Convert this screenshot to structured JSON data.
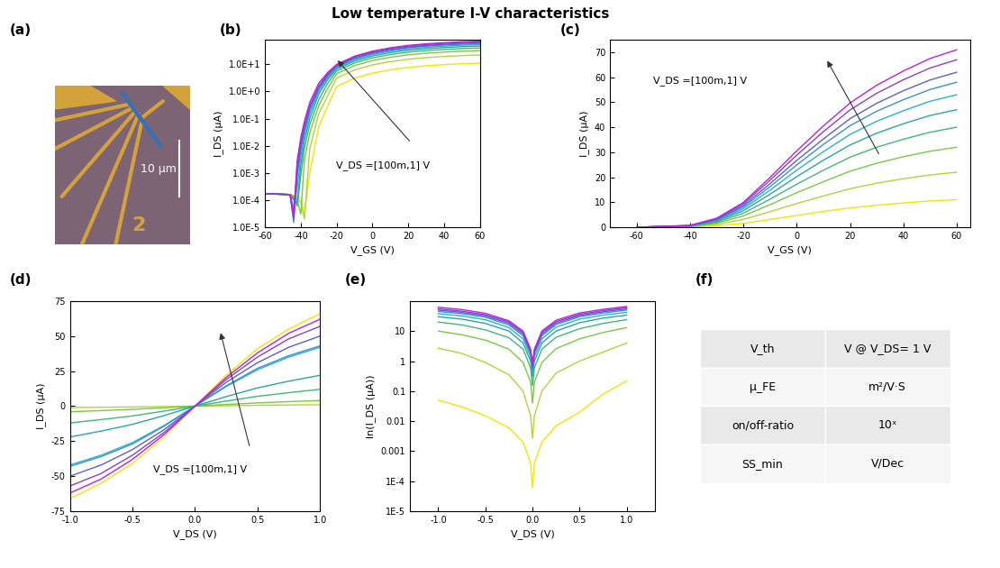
{
  "title": "Low temperature I-V characteristics",
  "image_panel": {
    "panel_label": "(a)",
    "scale_bar": "10 µm",
    "marker_text": "2"
  },
  "chart_data": [
    {
      "panel_label": "(b)",
      "type": "line",
      "log": "y",
      "x_label": "V_GS (V)",
      "y_label": "I_DS (µA)",
      "annotation": "V_DS =[100m,1] V",
      "x": [
        -60,
        -46,
        -44,
        -42,
        -40,
        -38,
        -35,
        -30,
        -25,
        -20,
        -10,
        0,
        10,
        20,
        30,
        40,
        50,
        60
      ],
      "xlim": [
        -60,
        60
      ],
      "xticks": [
        -60,
        -40,
        -20,
        0,
        20,
        40,
        60
      ],
      "ylim": [
        1e-05,
        80
      ],
      "yticks": [
        {
          "value": 1e-05,
          "label": "1.0E-5"
        },
        {
          "value": 0.0001,
          "label": "1.0E-4"
        },
        {
          "value": 0.001,
          "label": "1.0E-3"
        },
        {
          "value": 0.01,
          "label": "1.0E-2"
        },
        {
          "value": 0.1,
          "label": "1.0E-1"
        },
        {
          "value": 1,
          "label": "1.0E+0"
        },
        {
          "value": 10,
          "label": "1.0E+1"
        }
      ],
      "series": [
        {
          "color": "#f2e600",
          "values": [
            0.00017,
            0.00016,
            0.00015,
            0.00014,
            0.00012,
            3e-05,
            0.001,
            0.05,
            0.3,
            1.5,
            3.1,
            4.7,
            6.3,
            7.7,
            8.8,
            9.7,
            10.5,
            11
          ]
        },
        {
          "color": "#b5d334",
          "values": [
            0.00017,
            0.00016,
            0.00014,
            0.00012,
            8e-05,
            2e-05,
            0.008,
            0.15,
            0.7,
            3.1,
            6.2,
            9.5,
            12.5,
            15.4,
            17.6,
            19.4,
            20.9,
            22
          ]
        },
        {
          "color": "#7ac943",
          "values": [
            0.00017,
            0.00016,
            0.00013,
            0.0001,
            3e-05,
            0.003,
            0.03,
            0.3,
            1.3,
            4.5,
            9,
            13.8,
            18.2,
            22.4,
            25.6,
            28.2,
            30.4,
            32
          ]
        },
        {
          "color": "#3fb87a",
          "values": [
            0.00017,
            0.00016,
            0.00012,
            6e-05,
            0.0008,
            0.008,
            0.06,
            0.5,
            2,
            5.6,
            11.2,
            17.2,
            22.8,
            28,
            32,
            35.2,
            38,
            40
          ]
        },
        {
          "color": "#2aa6a0",
          "values": [
            0.00017,
            0.00016,
            0.0001,
            8e-05,
            0.002,
            0.015,
            0.1,
            0.8,
            2.7,
            6.6,
            13.2,
            20.2,
            26.8,
            32.9,
            37.6,
            41.4,
            44.7,
            47
          ]
        },
        {
          "color": "#27b6c6",
          "values": [
            0.00017,
            0.00016,
            5e-05,
            0.0003,
            0.004,
            0.025,
            0.15,
            1,
            3.2,
            7.4,
            14.8,
            22.8,
            30.2,
            37.1,
            42.4,
            46.6,
            50.4,
            53
          ]
        },
        {
          "color": "#3a8fd6",
          "values": [
            0.00017,
            0.00016,
            1.5e-05,
            0.0008,
            0.007,
            0.035,
            0.2,
            1.2,
            3.6,
            8.1,
            16.2,
            24.9,
            33.1,
            40.6,
            46.4,
            51,
            55.1,
            58
          ]
        },
        {
          "color": "#5a5fd0",
          "values": [
            0.00017,
            0.00016,
            2e-05,
            0.0012,
            0.01,
            0.045,
            0.25,
            1.4,
            4,
            8.7,
            17.4,
            26.7,
            35.3,
            43.4,
            49.6,
            54.6,
            58.9,
            62
          ]
        },
        {
          "color": "#8a3fcf",
          "values": [
            0.00017,
            0.00016,
            2.5e-05,
            0.002,
            0.015,
            0.06,
            0.3,
            1.6,
            4.5,
            9.4,
            18.8,
            28.8,
            38.2,
            46.9,
            53.6,
            59,
            63.7,
            67
          ]
        },
        {
          "color": "#c21fd6",
          "values": [
            0.00017,
            0.00016,
            3e-05,
            0.003,
            0.02,
            0.08,
            0.4,
            2,
            5,
            9.9,
            19.9,
            30.5,
            40.5,
            49.7,
            56.8,
            62.5,
            67.5,
            71
          ]
        }
      ]
    },
    {
      "panel_label": "(c)",
      "type": "line",
      "x_label": "V_GS (V)",
      "y_label": "I_DS (µA)",
      "annotation": "V_DS =[100m,1] V",
      "x": [
        -60,
        -40,
        -30,
        -20,
        -10,
        0,
        10,
        20,
        30,
        40,
        50,
        60
      ],
      "xlim": [
        -70,
        65
      ],
      "xticks": [
        -60,
        -40,
        -20,
        0,
        20,
        40,
        60
      ],
      "ylim": [
        0,
        75
      ],
      "yticks": [
        0,
        10,
        20,
        30,
        40,
        50,
        60,
        70
      ],
      "series": [
        {
          "color": "#f2e600",
          "values": [
            0,
            0.1,
            0.6,
            1.5,
            3.1,
            4.7,
            6.3,
            7.7,
            8.8,
            9.7,
            10.5,
            11
          ]
        },
        {
          "color": "#b5d334",
          "values": [
            0,
            0.2,
            1.1,
            3.1,
            6.2,
            9.5,
            12.5,
            15.4,
            17.6,
            19.4,
            20.9,
            22
          ]
        },
        {
          "color": "#7ac943",
          "values": [
            0,
            0.3,
            1.6,
            4.5,
            9,
            13.8,
            18.2,
            22.4,
            25.6,
            28.2,
            30.4,
            32
          ]
        },
        {
          "color": "#3fb87a",
          "values": [
            0,
            0.4,
            2,
            5.6,
            11.2,
            17.2,
            22.8,
            28,
            32,
            35.2,
            38,
            40
          ]
        },
        {
          "color": "#2aa6a0",
          "values": [
            0,
            0.5,
            2.4,
            6.6,
            13.2,
            20.2,
            26.8,
            32.9,
            37.6,
            41.4,
            44.7,
            47
          ]
        },
        {
          "color": "#27b6c6",
          "values": [
            0,
            0.5,
            2.7,
            7.4,
            14.8,
            22.8,
            30.2,
            37.1,
            42.4,
            46.6,
            50.4,
            53
          ]
        },
        {
          "color": "#3a8fd6",
          "values": [
            0,
            0.6,
            2.9,
            8.1,
            16.2,
            24.9,
            33.1,
            40.6,
            46.4,
            51,
            55.1,
            58
          ]
        },
        {
          "color": "#5a5fd0",
          "values": [
            0,
            0.6,
            3.1,
            8.7,
            17.4,
            26.7,
            35.3,
            43.4,
            49.6,
            54.6,
            58.9,
            62
          ]
        },
        {
          "color": "#8a3fcf",
          "values": [
            0,
            0.7,
            3.4,
            9.4,
            18.8,
            28.8,
            38.2,
            46.9,
            53.6,
            59,
            63.7,
            67
          ]
        },
        {
          "color": "#c21fd6",
          "values": [
            0,
            0.7,
            3.6,
            9.9,
            19.9,
            30.5,
            40.5,
            49.7,
            56.8,
            62.5,
            67.5,
            71
          ]
        }
      ]
    },
    {
      "panel_label": "(d)",
      "type": "line",
      "x_label": "V_DS (V)",
      "y_label": "I_DS (µA)",
      "annotation": "V_DS =[100m,1] V",
      "x": [
        -1,
        -0.75,
        -0.5,
        -0.25,
        0,
        0.25,
        0.5,
        0.75,
        1
      ],
      "xlim": [
        -1,
        1
      ],
      "xticks": [
        {
          "value": -1,
          "label": "-1.0"
        },
        {
          "value": -0.5,
          "label": "-0.5"
        },
        {
          "value": 0,
          "label": "0.0"
        },
        {
          "value": 0.5,
          "label": "0.5"
        },
        {
          "value": 1,
          "label": "1.0"
        }
      ],
      "ylim": [
        -75,
        75
      ],
      "yticks": [
        -75,
        -50,
        -25,
        0,
        25,
        50,
        75
      ],
      "series": [
        {
          "color": "#f2e600",
          "values": [
            -66,
            -55,
            -41,
            -22,
            0,
            22,
            41,
            55,
            66
          ]
        },
        {
          "color": "#b5d334",
          "values": [
            -1,
            -0.8,
            -0.6,
            -0.3,
            0,
            0.3,
            0.6,
            0.8,
            1
          ]
        },
        {
          "color": "#7ac943",
          "values": [
            -4,
            -3.2,
            -2.3,
            -1.2,
            0,
            1.2,
            2.3,
            3.2,
            4
          ]
        },
        {
          "color": "#3fb87a",
          "values": [
            -12,
            -9.6,
            -7,
            -3.6,
            0,
            3.6,
            7,
            9.6,
            12
          ]
        },
        {
          "color": "#2aa6a0",
          "values": [
            -22,
            -17.8,
            -13,
            -6.8,
            0,
            6.8,
            13,
            17.8,
            22
          ]
        },
        {
          "color": "#27b6c6",
          "values": [
            -42,
            -35,
            -26,
            -14,
            0,
            14,
            26,
            35,
            42
          ]
        },
        {
          "color": "#3a8fd6",
          "values": [
            -43,
            -36,
            -27,
            -14.5,
            0,
            14.5,
            27,
            36,
            43
          ]
        },
        {
          "color": "#5a5fd0",
          "values": [
            -50,
            -42,
            -31,
            -17,
            0,
            17,
            31,
            42,
            50
          ]
        },
        {
          "color": "#8a3fcf",
          "values": [
            -57,
            -48,
            -35,
            -19,
            0,
            19,
            35,
            48,
            57
          ]
        },
        {
          "color": "#c21fd6",
          "values": [
            -62,
            -52,
            -38,
            -20.5,
            0,
            20.5,
            38,
            52,
            62
          ]
        }
      ]
    },
    {
      "panel_label": "(e)",
      "type": "line",
      "log": "y",
      "x_label": "V_DS (V)",
      "y_label": "ln(I_DS (µA))",
      "x": [
        -1,
        -0.75,
        -0.5,
        -0.25,
        -0.1,
        -0.02,
        0,
        0.02,
        0.1,
        0.25,
        0.5,
        0.75,
        1
      ],
      "xlim": [
        -1.3,
        1.3
      ],
      "xticks": [
        {
          "value": -1,
          "label": "-1.0"
        },
        {
          "value": -0.5,
          "label": "-0.5"
        },
        {
          "value": 0,
          "label": "0.0"
        },
        {
          "value": 0.5,
          "label": "0.5"
        },
        {
          "value": 1,
          "label": "1.0"
        }
      ],
      "ylim": [
        1e-05,
        100
      ],
      "yticks": [
        {
          "value": 1e-05,
          "label": "1E-5"
        },
        {
          "value": 0.0001,
          "label": "1E-4"
        },
        0.001,
        0.01,
        0.1,
        1,
        10
      ],
      "series": [
        {
          "color": "#f2e600",
          "values": [
            0.05,
            0.03,
            0.015,
            0.006,
            0.002,
            0.0004,
            6e-05,
            0.0004,
            0.002,
            0.007,
            0.02,
            0.08,
            0.22
          ]
        },
        {
          "color": "#b5d334",
          "values": [
            2.7,
            1.8,
            0.9,
            0.35,
            0.1,
            0.015,
            0.0027,
            0.015,
            0.1,
            0.4,
            1,
            2,
            4
          ]
        },
        {
          "color": "#7ac943",
          "values": [
            10,
            7.5,
            5,
            2.5,
            0.9,
            0.2,
            0.04,
            0.2,
            0.9,
            2.6,
            5.5,
            9,
            13
          ]
        },
        {
          "color": "#3fb87a",
          "values": [
            20,
            16,
            11,
            6,
            2.5,
            0.6,
            0.15,
            0.6,
            2.5,
            6.2,
            12,
            18,
            24
          ]
        },
        {
          "color": "#2aa6a0",
          "values": [
            30,
            25,
            18,
            10,
            4,
            1,
            0.3,
            1,
            4,
            10,
            19,
            27,
            34
          ]
        },
        {
          "color": "#27b6c6",
          "values": [
            38,
            32,
            24,
            13,
            5.5,
            1.4,
            0.4,
            1.4,
            5.5,
            13.5,
            25,
            34,
            42
          ]
        },
        {
          "color": "#3a8fd6",
          "values": [
            45,
            38,
            29,
            16,
            7,
            1.8,
            0.5,
            1.8,
            7,
            16.5,
            30,
            40,
            50
          ]
        },
        {
          "color": "#5a5fd0",
          "values": [
            50,
            42,
            32,
            18,
            8,
            2,
            0.6,
            2,
            8,
            18.5,
            33,
            44,
            55
          ]
        },
        {
          "color": "#8a3fcf",
          "values": [
            55,
            46,
            35,
            20,
            9,
            2.2,
            0.7,
            2.2,
            9,
            20.5,
            36,
            48,
            60
          ]
        },
        {
          "color": "#c21fd6",
          "values": [
            62,
            52,
            39,
            22,
            10,
            2.5,
            0.8,
            2.5,
            10,
            23,
            40,
            53,
            66
          ]
        }
      ]
    }
  ],
  "table": {
    "panel_label": "(f)",
    "rows": [
      [
        "V_th",
        "V @ V_DS= 1 V"
      ],
      [
        "μ_FE",
        "m²/V·S"
      ],
      [
        "on/off-ratio",
        "10ˣ"
      ],
      [
        "SS_min",
        "V/Dec"
      ]
    ]
  }
}
